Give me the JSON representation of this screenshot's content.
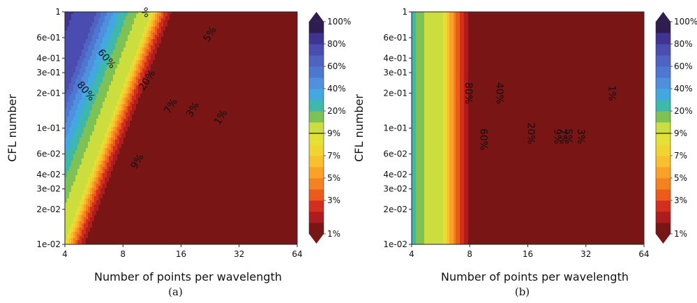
{
  "chart_data": [
    {
      "type": "heatmap",
      "panel_label": "(a)",
      "xlabel": "Number of points per wavelength",
      "ylabel": "CFL number",
      "xscale": "log2",
      "yscale": "log10",
      "xlim": [
        4,
        64
      ],
      "ylim": [
        0.01,
        1
      ],
      "x_ticks": [
        "4",
        "8",
        "16",
        "32",
        "64"
      ],
      "y_ticks": [
        "1e-02",
        "2e-02",
        "3e-02",
        "4e-02",
        "6e-02",
        "1e-01",
        "2e-01",
        "3e-01",
        "4e-01",
        "6e-01",
        "1"
      ],
      "contour_labels": [
        "80%",
        "60%",
        "%",
        "20%",
        "9%",
        "7%",
        "5%",
        "3%",
        "1%"
      ],
      "legend_position": "right"
    },
    {
      "type": "heatmap",
      "panel_label": "(b)",
      "xlabel": "Number of points per wavelength",
      "ylabel": "CFL number",
      "xscale": "log2",
      "yscale": "log10",
      "xlim": [
        4,
        64
      ],
      "ylim": [
        0.01,
        1
      ],
      "x_ticks": [
        "4",
        "8",
        "16",
        "32",
        "64"
      ],
      "y_ticks": [
        "1e-02",
        "2e-02",
        "3e-02",
        "4e-02",
        "6e-02",
        "1e-01",
        "2e-01",
        "3e-01",
        "4e-01",
        "6e-01",
        "1"
      ],
      "contour_labels": [
        "80%",
        "60%",
        "40%",
        "20%",
        "9%",
        "7%",
        "5%",
        "3%",
        "1%"
      ],
      "legend_position": "right"
    }
  ],
  "colorbar": {
    "tick_labels": [
      "100%",
      "80%",
      "60%",
      "40%",
      "20%",
      "9%",
      "7%",
      "5%",
      "3%",
      "1%"
    ],
    "levels": [
      1,
      2,
      3,
      4,
      5,
      6,
      7,
      8,
      9,
      10,
      20,
      30,
      40,
      50,
      60,
      70,
      80,
      90,
      100
    ],
    "colors": [
      "#7a1515",
      "#ad1c1e",
      "#d32f1f",
      "#ec5a1c",
      "#f58220",
      "#f9a227",
      "#f8c02f",
      "#f0d531",
      "#e4e136",
      "#ccde3d",
      "#7ec155",
      "#3fb8ac",
      "#43a8df",
      "#4f8fde",
      "#4d77d1",
      "#4e63c3",
      "#4a4daf",
      "#3f3492",
      "#2f1d52"
    ]
  }
}
